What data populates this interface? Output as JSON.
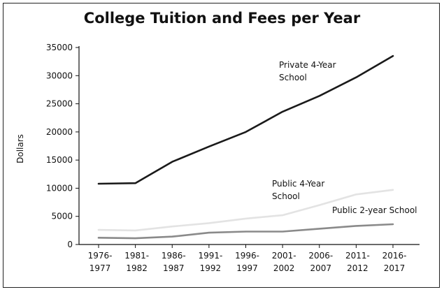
{
  "chart_data": {
    "type": "line",
    "title": "College Tuition and Fees per Year",
    "xlabel": "",
    "ylabel": "Dollars",
    "categories": [
      [
        "1976-",
        "1977"
      ],
      [
        "1981-",
        "1982"
      ],
      [
        "1986-",
        "1987"
      ],
      [
        "1991-",
        "1992"
      ],
      [
        "1996-",
        "1997"
      ],
      [
        "2001-",
        "2002"
      ],
      [
        "2006-",
        "2007"
      ],
      [
        "2011-",
        "2012"
      ],
      [
        "2016-",
        "2017"
      ]
    ],
    "ylim": [
      0,
      35000
    ],
    "yticks": [
      0,
      5000,
      10000,
      15000,
      20000,
      25000,
      30000,
      35000
    ],
    "grid": false,
    "legend": "none",
    "series": [
      {
        "name": "Private 4-Year School",
        "label_lines": [
          "Private 4-Year",
          "School"
        ],
        "color": "#1a1a1a",
        "values": [
          10800,
          10900,
          14700,
          17400,
          20000,
          23600,
          26400,
          29700,
          33500
        ]
      },
      {
        "name": "Public 4-Year School",
        "label_lines": [
          "Public 4-Year",
          "School"
        ],
        "color": "#e3e3e3",
        "values": [
          2600,
          2500,
          3200,
          3800,
          4600,
          5200,
          7000,
          8900,
          9700
        ]
      },
      {
        "name": "Public 2-year School",
        "label_lines": [
          "Public 2-year School"
        ],
        "color": "#8a8a8a",
        "values": [
          1200,
          1100,
          1400,
          2100,
          2300,
          2300,
          2800,
          3300,
          3600
        ]
      }
    ]
  }
}
